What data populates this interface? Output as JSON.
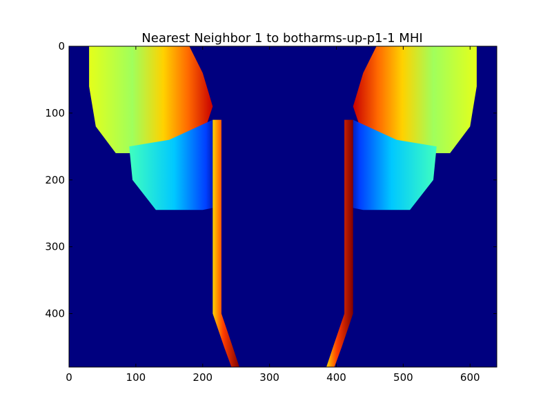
{
  "chart_data": {
    "type": "heatmap",
    "title": "Nearest Neighbor 1 to botharms-up-p1-1 MHI",
    "xlabel": "",
    "ylabel": "",
    "xlim": [
      0,
      640
    ],
    "ylim": [
      480,
      0
    ],
    "x_ticks": [
      {
        "value": 0,
        "label": "0"
      },
      {
        "value": 100,
        "label": "100"
      },
      {
        "value": 200,
        "label": "200"
      },
      {
        "value": 300,
        "label": "300"
      },
      {
        "value": 400,
        "label": "400"
      },
      {
        "value": 500,
        "label": "500"
      },
      {
        "value": 600,
        "label": "600"
      }
    ],
    "y_ticks": [
      {
        "value": 0,
        "label": "0"
      },
      {
        "value": 100,
        "label": "100"
      },
      {
        "value": 200,
        "label": "200"
      },
      {
        "value": 300,
        "label": "300"
      },
      {
        "value": 400,
        "label": "400"
      }
    ],
    "colormap": "jet",
    "background_color": "#00007f",
    "grid": false,
    "legend": "none",
    "regions": [
      {
        "name": "left-arm-upper",
        "points": [
          [
            30,
            0
          ],
          [
            180,
            0
          ],
          [
            200,
            40
          ],
          [
            215,
            90
          ],
          [
            205,
            120
          ],
          [
            150,
            150
          ],
          [
            130,
            160
          ],
          [
            70,
            160
          ],
          [
            40,
            120
          ],
          [
            30,
            60
          ]
        ]
      },
      {
        "name": "left-arm-lower",
        "points": [
          [
            90,
            150
          ],
          [
            150,
            140
          ],
          [
            215,
            110
          ],
          [
            220,
            200
          ],
          [
            225,
            240
          ],
          [
            200,
            245
          ],
          [
            130,
            245
          ],
          [
            95,
            200
          ]
        ]
      },
      {
        "name": "right-arm-upper",
        "points": [
          [
            610,
            0
          ],
          [
            460,
            0
          ],
          [
            440,
            40
          ],
          [
            425,
            90
          ],
          [
            435,
            120
          ],
          [
            490,
            150
          ],
          [
            510,
            160
          ],
          [
            570,
            160
          ],
          [
            600,
            120
          ],
          [
            610,
            60
          ]
        ]
      },
      {
        "name": "right-arm-lower",
        "points": [
          [
            550,
            150
          ],
          [
            490,
            140
          ],
          [
            425,
            110
          ],
          [
            420,
            200
          ],
          [
            415,
            240
          ],
          [
            440,
            245
          ],
          [
            510,
            245
          ],
          [
            545,
            200
          ]
        ]
      },
      {
        "name": "torso-left-edge",
        "points": [
          [
            215,
            110
          ],
          [
            228,
            110
          ],
          [
            228,
            400
          ],
          [
            245,
            450
          ],
          [
            255,
            480
          ],
          [
            243,
            480
          ],
          [
            232,
            450
          ],
          [
            215,
            400
          ]
        ]
      },
      {
        "name": "torso-right-edge",
        "points": [
          [
            425,
            110
          ],
          [
            412,
            110
          ],
          [
            412,
            400
          ],
          [
            395,
            450
          ],
          [
            385,
            480
          ],
          [
            397,
            480
          ],
          [
            408,
            450
          ],
          [
            425,
            400
          ]
        ]
      }
    ],
    "annotations": []
  }
}
